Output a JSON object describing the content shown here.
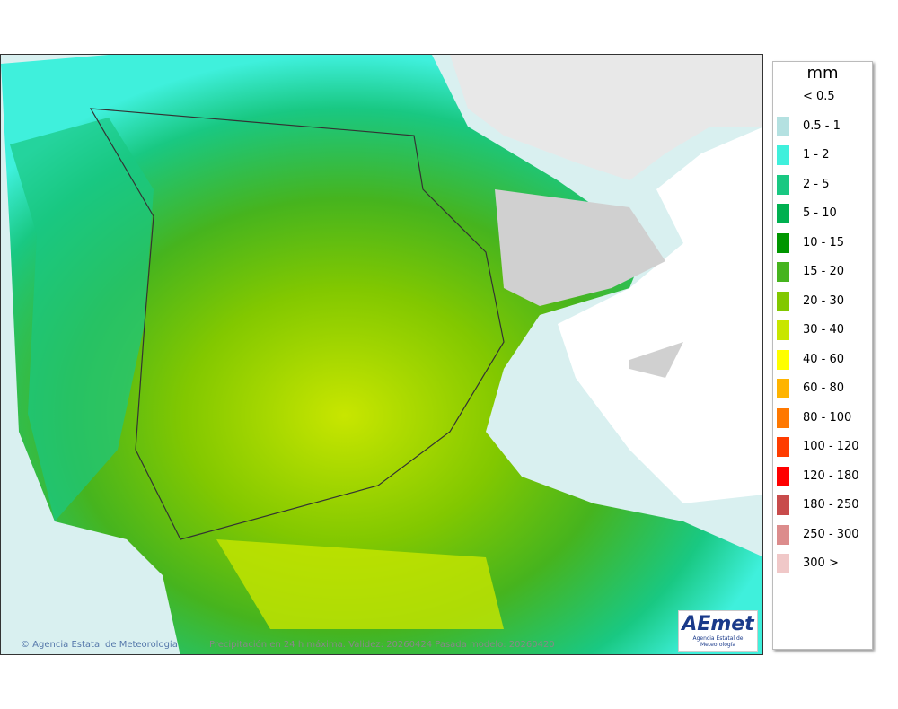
{
  "legend": {
    "title": "mm",
    "items": [
      {
        "label": "< 0.5",
        "color": "#ffffff"
      },
      {
        "label": "0.5 - 1",
        "color": "#b4e1e1"
      },
      {
        "label": "1 - 2",
        "color": "#3ff0dc"
      },
      {
        "label": "2 - 5",
        "color": "#19c882"
      },
      {
        "label": "5 - 10",
        "color": "#00b050"
      },
      {
        "label": "10 - 15",
        "color": "#009600"
      },
      {
        "label": "15 - 20",
        "color": "#46b41e"
      },
      {
        "label": "20 - 30",
        "color": "#82c800"
      },
      {
        "label": "30 - 40",
        "color": "#c8e600"
      },
      {
        "label": "40 - 60",
        "color": "#ffff00"
      },
      {
        "label": "60 - 80",
        "color": "#ffb400"
      },
      {
        "label": "80 - 100",
        "color": "#ff7800"
      },
      {
        "label": "100 - 120",
        "color": "#ff3c00"
      },
      {
        "label": "120 - 180",
        "color": "#ff0000"
      },
      {
        "label": "180 - 250",
        "color": "#c84b4b"
      },
      {
        "label": "250 - 300",
        "color": "#dc8c8c"
      },
      {
        "label": "300 >",
        "color": "#f0c8c8"
      }
    ]
  },
  "footer": {
    "credit": "© Agencia Estatal de Meteorología",
    "caption": "Precipitación en 24 h máxima. Validez: 20260424 Pasada modelo: 20260420"
  },
  "logo": {
    "name": "AEmet",
    "subtitle": "Agencia Estatal de Meteorología"
  }
}
